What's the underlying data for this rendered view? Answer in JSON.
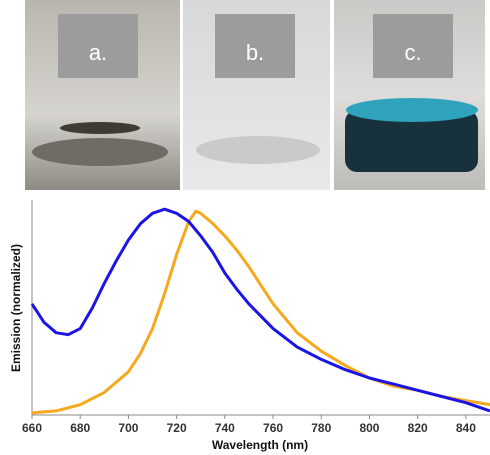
{
  "photos": {
    "labels": [
      "a.",
      "b.",
      "c."
    ]
  },
  "chart_data": {
    "type": "line",
    "xlabel": "Wavelength (nm)",
    "ylabel": "Emission (normalized)",
    "xlim": [
      660,
      850
    ],
    "ylim": [
      0,
      1.03
    ],
    "xticks": [
      660,
      680,
      700,
      720,
      740,
      760,
      780,
      800,
      820,
      840
    ],
    "series": [
      {
        "color": "#1a14e6",
        "x": [
          660,
          665,
          670,
          675,
          680,
          685,
          690,
          695,
          700,
          705,
          710,
          715,
          720,
          725,
          730,
          735,
          740,
          745,
          750,
          760,
          770,
          780,
          790,
          800,
          810,
          820,
          830,
          840,
          850
        ],
        "values": [
          0.54,
          0.45,
          0.4,
          0.39,
          0.42,
          0.52,
          0.64,
          0.75,
          0.85,
          0.93,
          0.98,
          1.0,
          0.98,
          0.94,
          0.87,
          0.79,
          0.69,
          0.61,
          0.54,
          0.42,
          0.33,
          0.27,
          0.22,
          0.18,
          0.15,
          0.12,
          0.09,
          0.06,
          0.02
        ]
      },
      {
        "color": "#f7a81c",
        "x": [
          660,
          670,
          680,
          690,
          700,
          705,
          710,
          715,
          720,
          725,
          728,
          730,
          735,
          740,
          745,
          750,
          760,
          770,
          780,
          790,
          800,
          810,
          820,
          830,
          840,
          850
        ],
        "values": [
          0.01,
          0.02,
          0.05,
          0.11,
          0.21,
          0.3,
          0.42,
          0.59,
          0.78,
          0.94,
          0.99,
          0.98,
          0.93,
          0.87,
          0.8,
          0.72,
          0.54,
          0.4,
          0.31,
          0.24,
          0.18,
          0.14,
          0.12,
          0.09,
          0.07,
          0.05
        ]
      }
    ]
  }
}
